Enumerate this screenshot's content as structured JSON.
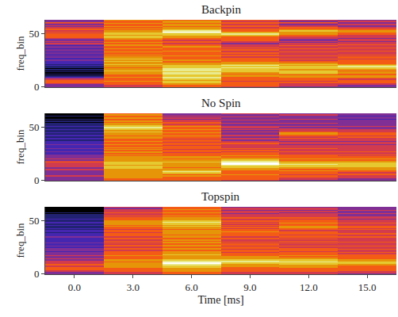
{
  "chart_data": [
    {
      "type": "heatmap",
      "title": "Backpin",
      "y_label": "freq_bin",
      "x": [
        0,
        3,
        6,
        9,
        12,
        15
      ],
      "xlim": [
        -1.5,
        16.5
      ],
      "ylim": [
        -0.5,
        63.5
      ],
      "yticks": [
        0,
        50
      ],
      "tick_labels": "y",
      "zlim": [
        0,
        9
      ],
      "cells": [
        [
          3,
          3,
          3,
          4,
          5,
          5,
          5,
          4,
          3,
          2,
          1,
          0,
          1,
          0,
          1,
          0,
          1,
          0,
          1,
          1,
          2,
          1,
          2,
          2,
          2,
          3,
          2,
          2,
          3,
          2,
          3,
          2,
          3,
          2,
          3,
          3,
          2,
          3,
          3,
          2,
          3,
          4,
          3,
          4,
          3,
          3,
          4,
          5,
          5,
          5,
          5,
          4,
          5,
          4,
          5,
          5,
          4,
          3,
          4,
          3,
          4,
          5,
          3,
          3
        ],
        [
          4,
          4,
          5,
          5,
          5,
          6,
          5,
          5,
          5,
          6,
          5,
          5,
          6,
          6,
          6,
          7,
          6,
          6,
          5,
          6,
          6,
          7,
          6,
          6,
          7,
          6,
          7,
          6,
          6,
          5,
          6,
          5,
          5,
          6,
          5,
          5,
          6,
          5,
          5,
          6,
          6,
          5,
          6,
          5,
          5,
          6,
          6,
          7,
          7,
          6,
          7,
          7,
          6,
          6,
          5,
          6,
          5,
          6,
          5,
          5,
          6,
          5,
          5,
          6
        ],
        [
          5,
          5,
          6,
          6,
          7,
          7,
          6,
          7,
          8,
          8,
          7,
          7,
          8,
          8,
          7,
          8,
          8,
          8,
          7,
          7,
          7,
          6,
          6,
          5,
          5,
          6,
          5,
          5,
          5,
          6,
          5,
          5,
          5,
          5,
          6,
          5,
          5,
          5,
          6,
          5,
          5,
          4,
          5,
          5,
          4,
          5,
          5,
          6,
          6,
          7,
          7,
          8,
          9,
          8,
          7,
          6,
          6,
          5,
          6,
          6,
          5,
          6,
          6,
          5
        ],
        [
          4,
          5,
          5,
          5,
          5,
          4,
          5,
          5,
          5,
          5,
          6,
          6,
          5,
          6,
          7,
          7,
          7,
          7,
          8,
          7,
          8,
          7,
          6,
          6,
          5,
          5,
          5,
          5,
          4,
          5,
          5,
          4,
          5,
          4,
          4,
          5,
          4,
          5,
          4,
          4,
          4,
          3,
          4,
          4,
          5,
          5,
          5,
          5,
          6,
          7,
          8,
          7,
          6,
          5,
          5,
          5,
          4,
          5,
          5,
          4,
          5,
          5,
          4,
          5
        ],
        [
          3,
          4,
          4,
          4,
          5,
          4,
          5,
          5,
          5,
          6,
          6,
          5,
          6,
          7,
          7,
          7,
          6,
          7,
          7,
          7,
          6,
          7,
          6,
          5,
          5,
          4,
          5,
          4,
          4,
          5,
          4,
          4,
          4,
          5,
          4,
          4,
          5,
          4,
          4,
          5,
          4,
          4,
          3,
          4,
          3,
          3,
          4,
          4,
          5,
          5,
          6,
          6,
          6,
          7,
          6,
          5,
          5,
          4,
          4,
          3,
          4,
          5,
          3,
          4
        ],
        [
          3,
          3,
          4,
          4,
          5,
          5,
          5,
          4,
          5,
          6,
          6,
          5,
          5,
          6,
          6,
          5,
          6,
          7,
          7,
          8,
          7,
          6,
          5,
          5,
          5,
          5,
          4,
          5,
          5,
          4,
          5,
          4,
          4,
          4,
          5,
          4,
          4,
          5,
          4,
          4,
          5,
          4,
          4,
          3,
          4,
          4,
          3,
          4,
          4,
          4,
          5,
          5,
          6,
          6,
          5,
          5,
          4,
          3,
          3,
          4,
          3,
          3,
          4,
          3
        ]
      ]
    },
    {
      "type": "heatmap",
      "title": "No Spin",
      "y_label": "freq_bin",
      "x": [
        0,
        3,
        6,
        9,
        12,
        15
      ],
      "xlim": [
        -1.5,
        16.5
      ],
      "ylim": [
        -0.5,
        63.5
      ],
      "yticks": [
        0,
        50
      ],
      "tick_labels": "y",
      "zlim": [
        0,
        9
      ],
      "cells": [
        [
          3,
          3,
          3,
          3,
          4,
          3,
          3,
          3,
          3,
          3,
          4,
          3,
          3,
          4,
          4,
          4,
          4,
          5,
          4,
          3,
          4,
          3,
          3,
          3,
          3,
          2,
          2,
          3,
          2,
          2,
          3,
          2,
          2,
          2,
          3,
          2,
          2,
          2,
          1,
          2,
          2,
          1,
          2,
          2,
          1,
          2,
          1,
          1,
          2,
          1,
          1,
          2,
          1,
          1,
          1,
          0,
          1,
          0,
          1,
          0,
          0,
          1,
          0,
          0
        ],
        [
          5,
          5,
          6,
          6,
          6,
          6,
          6,
          6,
          6,
          6,
          6,
          7,
          7,
          7,
          6,
          7,
          7,
          7,
          6,
          6,
          6,
          6,
          6,
          5,
          6,
          5,
          6,
          6,
          5,
          6,
          5,
          6,
          5,
          5,
          6,
          5,
          5,
          6,
          5,
          5,
          6,
          6,
          5,
          6,
          6,
          6,
          7,
          6,
          7,
          7,
          8,
          7,
          7,
          6,
          6,
          5,
          6,
          5,
          5,
          6,
          5,
          5,
          6,
          5
        ],
        [
          5,
          5,
          5,
          5,
          6,
          5,
          6,
          7,
          8,
          7,
          6,
          6,
          5,
          6,
          6,
          6,
          6,
          7,
          6,
          6,
          5,
          6,
          6,
          5,
          5,
          5,
          4,
          5,
          5,
          4,
          5,
          5,
          5,
          4,
          5,
          5,
          4,
          5,
          5,
          4,
          5,
          5,
          6,
          5,
          5,
          6,
          5,
          5,
          6,
          5,
          5,
          6,
          5,
          4,
          5,
          5,
          4,
          4,
          3,
          4,
          3,
          4,
          3,
          3
        ],
        [
          4,
          5,
          5,
          5,
          5,
          6,
          5,
          5,
          5,
          5,
          6,
          6,
          7,
          7,
          8,
          9,
          9,
          8,
          8,
          7,
          6,
          6,
          5,
          6,
          5,
          5,
          5,
          4,
          5,
          4,
          5,
          4,
          4,
          4,
          4,
          5,
          4,
          4,
          3,
          4,
          4,
          3,
          4,
          4,
          3,
          3,
          4,
          3,
          4,
          3,
          4,
          4,
          3,
          3,
          4,
          3,
          3,
          4,
          3,
          3,
          4,
          3,
          3,
          4
        ],
        [
          3,
          4,
          4,
          5,
          5,
          4,
          5,
          5,
          5,
          6,
          5,
          6,
          6,
          7,
          7,
          8,
          7,
          6,
          6,
          5,
          6,
          5,
          5,
          5,
          5,
          4,
          4,
          5,
          4,
          4,
          5,
          4,
          4,
          4,
          3,
          4,
          4,
          3,
          4,
          4,
          5,
          4,
          5,
          5,
          6,
          6,
          5,
          4,
          4,
          4,
          3,
          4,
          3,
          3,
          4,
          3,
          3,
          3,
          4,
          3,
          3,
          3,
          4,
          3
        ],
        [
          3,
          3,
          4,
          4,
          4,
          5,
          5,
          4,
          5,
          5,
          6,
          6,
          6,
          7,
          7,
          7,
          7,
          6,
          6,
          5,
          6,
          5,
          5,
          4,
          5,
          4,
          4,
          5,
          4,
          4,
          4,
          4,
          4,
          4,
          3,
          4,
          4,
          3,
          4,
          4,
          4,
          5,
          4,
          5,
          5,
          5,
          4,
          4,
          4,
          3,
          3,
          4,
          3,
          3,
          3,
          3,
          3,
          3,
          2,
          3,
          3,
          2,
          3,
          3
        ]
      ]
    },
    {
      "type": "heatmap",
      "title": "Topspin",
      "y_label": "freq_bin",
      "x_label": "Time [ms]",
      "x": [
        0,
        3,
        6,
        9,
        12,
        15
      ],
      "xlim": [
        -1.5,
        16.5
      ],
      "ylim": [
        -0.5,
        63.5
      ],
      "yticks": [
        0,
        50
      ],
      "xticks": [
        {
          "value": 0,
          "label": "0.0"
        },
        {
          "value": 3,
          "label": "3.0"
        },
        {
          "value": 6,
          "label": "6.0"
        },
        {
          "value": 9,
          "label": "9.0"
        },
        {
          "value": 12,
          "label": "12.0"
        },
        {
          "value": 15,
          "label": "15.0"
        }
      ],
      "zlim": [
        0,
        9
      ],
      "cells": [
        [
          3,
          3,
          4,
          4,
          5,
          5,
          5,
          4,
          5,
          5,
          4,
          4,
          4,
          3,
          4,
          3,
          3,
          4,
          3,
          3,
          3,
          2,
          3,
          3,
          3,
          2,
          3,
          2,
          2,
          3,
          2,
          2,
          2,
          2,
          2,
          3,
          2,
          2,
          2,
          1,
          2,
          2,
          1,
          2,
          1,
          1,
          2,
          1,
          2,
          2,
          1,
          1,
          2,
          1,
          1,
          1,
          1,
          0,
          1,
          0,
          0,
          0,
          0,
          0
        ],
        [
          4,
          4,
          5,
          5,
          5,
          5,
          6,
          6,
          6,
          6,
          6,
          5,
          6,
          6,
          5,
          5,
          5,
          6,
          5,
          5,
          5,
          5,
          4,
          5,
          5,
          4,
          5,
          5,
          4,
          5,
          4,
          5,
          4,
          5,
          5,
          4,
          5,
          5,
          5,
          4,
          5,
          5,
          4,
          5,
          5,
          6,
          5,
          6,
          6,
          6,
          6,
          5,
          5,
          5,
          4,
          5,
          4,
          4,
          5,
          4,
          4,
          4,
          3,
          4
        ],
        [
          5,
          5,
          6,
          6,
          6,
          6,
          7,
          7,
          8,
          8,
          9,
          8,
          8,
          7,
          6,
          6,
          6,
          6,
          7,
          6,
          6,
          6,
          5,
          6,
          6,
          5,
          6,
          6,
          5,
          6,
          6,
          5,
          6,
          5,
          5,
          6,
          6,
          5,
          6,
          6,
          6,
          6,
          5,
          6,
          6,
          7,
          6,
          7,
          7,
          8,
          7,
          6,
          6,
          6,
          5,
          6,
          5,
          5,
          6,
          5,
          5,
          6,
          5,
          5
        ],
        [
          4,
          4,
          5,
          5,
          5,
          5,
          5,
          6,
          6,
          6,
          7,
          8,
          8,
          7,
          6,
          6,
          6,
          5,
          5,
          5,
          4,
          5,
          5,
          4,
          5,
          5,
          4,
          5,
          5,
          4,
          5,
          4,
          4,
          5,
          5,
          4,
          5,
          5,
          5,
          5,
          6,
          5,
          5,
          4,
          5,
          4,
          5,
          4,
          5,
          4,
          5,
          4,
          4,
          5,
          4,
          4,
          4,
          3,
          4,
          4,
          3,
          4,
          4,
          3
        ],
        [
          4,
          4,
          5,
          5,
          5,
          5,
          6,
          6,
          6,
          7,
          7,
          8,
          7,
          7,
          6,
          6,
          5,
          6,
          5,
          5,
          5,
          4,
          5,
          5,
          5,
          4,
          5,
          4,
          4,
          5,
          4,
          5,
          4,
          5,
          4,
          5,
          5,
          4,
          5,
          5,
          5,
          4,
          5,
          5,
          6,
          6,
          5,
          5,
          6,
          5,
          5,
          5,
          4,
          5,
          4,
          4,
          4,
          4,
          3,
          4,
          3,
          4,
          4,
          3
        ],
        [
          3,
          4,
          4,
          5,
          5,
          5,
          5,
          5,
          6,
          6,
          7,
          7,
          6,
          6,
          5,
          5,
          5,
          5,
          5,
          4,
          5,
          4,
          4,
          5,
          4,
          4,
          5,
          4,
          4,
          4,
          5,
          4,
          4,
          4,
          4,
          5,
          4,
          4,
          5,
          4,
          4,
          4,
          5,
          4,
          5,
          5,
          4,
          4,
          5,
          4,
          4,
          4,
          3,
          4,
          4,
          3,
          3,
          4,
          3,
          3,
          4,
          3,
          3,
          3
        ]
      ]
    }
  ]
}
